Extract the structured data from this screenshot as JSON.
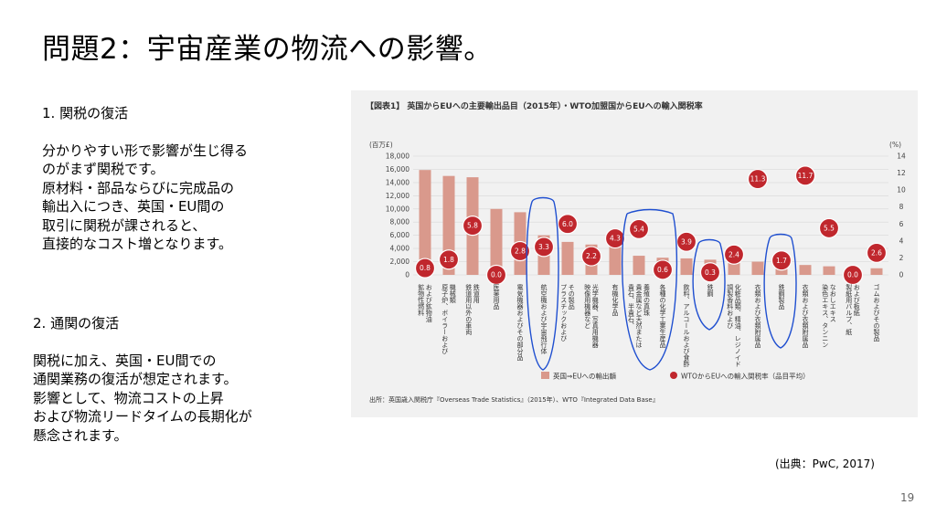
{
  "slide": {
    "title": "問題2：宇宙産業の物流への影響。",
    "sec1_head": "1. 関税の復活",
    "sec1_lines": [
      "分かりやすい形で影響が生じ得る",
      "のがまず関税です。",
      "原材料・部品ならびに完成品の",
      "輸出入につき、英国・EU間の",
      "取引に関税が課されると、",
      "直接的なコスト増となります。"
    ],
    "sec2_head": "2. 通関の復活",
    "sec2_lines": [
      "関税に加え、英国・EU間での",
      "通関業務の復活が想定されます。",
      "影響として、物流コストの上昇",
      "および物流リードタイムの長期化が",
      "懸念されます。"
    ],
    "source": "(出典：PwC, 2017)",
    "page_number": "19"
  },
  "chart_data": {
    "type": "bar",
    "title": "【図表1】 英国からEUへの主要輸出品目（2015年）・WTO加盟国からEUへの輸入関税率",
    "ylabel_left": "(百万£)",
    "ylabel_right": "(%)",
    "ylim_left": [
      0,
      18000
    ],
    "yticks_left": [
      "0",
      "2,000",
      "4,000",
      "6,000",
      "8,000",
      "10,000",
      "12,000",
      "14,000",
      "16,000",
      "18,000"
    ],
    "ylim_right": [
      0,
      14
    ],
    "yticks_right": [
      "0",
      "2",
      "4",
      "6",
      "8",
      "10",
      "12",
      "14"
    ],
    "categories": [
      "鉱物性燃料および鉱物油",
      "原子炉、ボイラーおよび機械類",
      "鉄道用以外の車両",
      "医薬用品",
      "電気機器およびその部分品",
      "航空機および宇宙飛行体",
      "プラスチックおよびその製品",
      "映像用機器など光学機器、写真用機器",
      "有機化学品",
      "真珠、貴石、半貴石、貴金属など天然または養殖の真珠",
      "各種の化学工業生産品",
      "飲料、アルコールおよび食酢",
      "鉄鋼",
      "調製香料および化粧品類、精油、レジノイド",
      "衣類および衣類附属品",
      "鉄鋼製品",
      "衣類および衣類附属品（編物）",
      "染色エキス、タンニンなど",
      "製紙用パルプ、紙および板紙",
      "ゴムおよびその製品"
    ],
    "category_lines": [
      [
        "鉱物性燃料",
        "および鉱物油"
      ],
      [
        "原子炉、ボイラーおよび",
        "機械類"
      ],
      [
        "鉄道用以外の車両",
        "鉄道用"
      ],
      [
        "医薬用品"
      ],
      [
        "電気機器およびその部分品"
      ],
      [
        "航空機および宇宙飛行体"
      ],
      [
        "プラスチックおよび",
        "その製品"
      ],
      [
        "映像用機器など",
        "光学機器、写真用機器"
      ],
      [
        "有機化学品"
      ],
      [
        "貴石、半貴石、",
        "貴金属など天然または",
        "養殖の真珠"
      ],
      [
        "各種の化学工業生産品"
      ],
      [
        "飲料、アルコールおよび食酢"
      ],
      [
        "鉄鋼"
      ],
      [
        "調製香料および",
        "化粧品類、精油、レジノイド"
      ],
      [
        "衣類および衣類附属品"
      ],
      [
        "鉄鋼製品"
      ],
      [
        "衣類および衣類附属品"
      ],
      [
        "染色エキス、タンニン",
        "なおしエキス"
      ],
      [
        "製紙用パルプ、紙",
        "および板紙"
      ],
      [
        "ゴムおよびその製品"
      ]
    ],
    "series": [
      {
        "name": "英国⇒EUへの輸出額",
        "axis": "left",
        "values": [
          15900,
          15000,
          14800,
          10000,
          9500,
          6000,
          5000,
          4600,
          4400,
          2900,
          2600,
          2500,
          2300,
          2100,
          2000,
          1900,
          1500,
          1300,
          1200,
          1000
        ]
      },
      {
        "name": "WTOからEUへの輸入関税率（品目平均）",
        "axis": "right",
        "values": [
          0.8,
          1.8,
          5.8,
          0.0,
          2.8,
          3.3,
          6.0,
          2.2,
          4.3,
          5.4,
          0.6,
          3.9,
          0.3,
          2.4,
          11.3,
          1.7,
          11.7,
          5.5,
          0.0,
          2.6
        ],
        "labels": [
          "0.8",
          "1.8",
          "5.8",
          "0.0",
          "2.8",
          "3.3",
          "6.0",
          "2.2",
          "4.3",
          "5.4",
          "0.6",
          "3.9",
          "0.3",
          "2.4",
          "11.3",
          "1.7",
          "11.7",
          "5.5",
          "0.0",
          "2.6"
        ]
      }
    ],
    "legend_placement": "bottom",
    "grid": true,
    "note": "出所：英国歳入関税庁『Overseas Trade Statistics』（2015年）、WTO『Integrated Data Base』",
    "colors": {
      "bar": "#d9998c",
      "dot": "#c0272d",
      "annotation": "#1f4fd0",
      "grid": "#d8d8d8",
      "panel": "#f1f1f1"
    }
  }
}
